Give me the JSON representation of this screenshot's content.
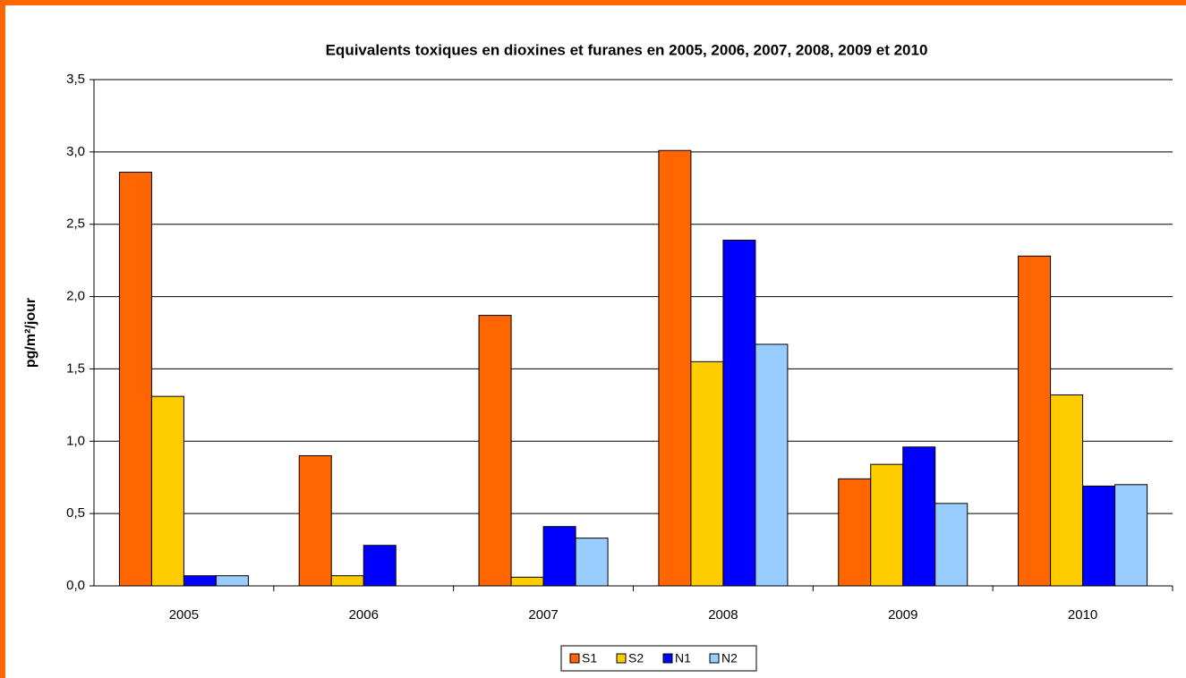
{
  "chart_data": {
    "type": "bar",
    "title": "Equivalents toxiques en dioxines et furanes en 2005, 2006, 2007, 2008, 2009 et 2010",
    "y_label": "pg/m²/jour",
    "categories": [
      "2005",
      "2006",
      "2007",
      "2008",
      "2009",
      "2010"
    ],
    "series": [
      {
        "name": "S1",
        "color": "#FF6600",
        "values": [
          2.86,
          0.9,
          1.87,
          3.01,
          0.74,
          2.28
        ]
      },
      {
        "name": "S2",
        "color": "#FFCC00",
        "values": [
          1.31,
          0.07,
          0.06,
          1.55,
          0.84,
          1.32
        ]
      },
      {
        "name": "N1",
        "color": "#0000FF",
        "values": [
          0.07,
          0.28,
          0.41,
          2.39,
          0.96,
          0.69
        ]
      },
      {
        "name": "N2",
        "color": "#99CCFF",
        "values": [
          0.07,
          null,
          0.33,
          1.67,
          0.57,
          0.7
        ]
      }
    ],
    "ylim": [
      0,
      3.5
    ],
    "yticks": [
      {
        "value": 0,
        "label": "0,0"
      },
      {
        "value": 0.5,
        "label": "0,5"
      },
      {
        "value": 1,
        "label": "1,0"
      },
      {
        "value": 1.5,
        "label": "1,5"
      },
      {
        "value": 2,
        "label": "2,0"
      },
      {
        "value": 2.5,
        "label": "2,5"
      },
      {
        "value": 3,
        "label": "3,0"
      },
      {
        "value": 3.5,
        "label": "3,5"
      }
    ],
    "grid": true,
    "legend": "bottom"
  }
}
